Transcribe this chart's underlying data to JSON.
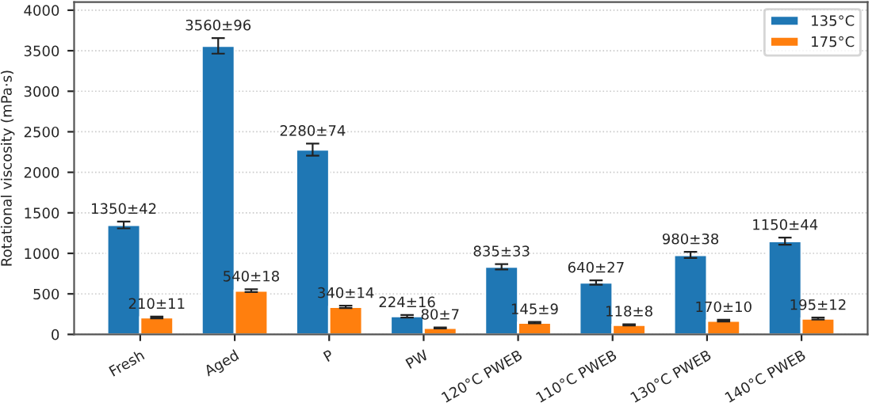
{
  "chart_data": {
    "type": "bar",
    "ylabel": "Rotational viscosity (mPa·s)",
    "categories": [
      "Fresh",
      "Aged",
      "P",
      "PW",
      "120°C PWEB",
      "110°C PWEB",
      "130°C PWEB",
      "140°C PWEB"
    ],
    "series": [
      {
        "name": "135°C",
        "color": "#1f77b4",
        "values": [
          1350,
          3560,
          2280,
          224,
          835,
          640,
          980,
          1150
        ],
        "errors": [
          42,
          96,
          74,
          16,
          33,
          27,
          38,
          44
        ],
        "value_labels": [
          "1350±42",
          "3560±96",
          "2280±74",
          "224±16",
          "835±33",
          "640±27",
          "980±38",
          "1150±44"
        ]
      },
      {
        "name": "175°C",
        "color": "#ff7f0e",
        "values": [
          210,
          540,
          340,
          80,
          145,
          118,
          170,
          195
        ],
        "errors": [
          11,
          18,
          14,
          7,
          9,
          8,
          10,
          12
        ],
        "value_labels": [
          "210±11",
          "540±18",
          "340±14",
          "80±7",
          "145±9",
          "118±8",
          "170±10",
          "195±12"
        ]
      }
    ],
    "ylim": [
      0,
      4100
    ],
    "yticks": [
      0,
      500,
      1000,
      1500,
      2000,
      2500,
      3000,
      3500,
      4000
    ],
    "grid": "y",
    "legend": "top right"
  }
}
